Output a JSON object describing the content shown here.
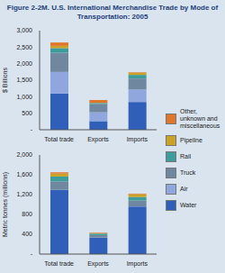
{
  "title": "Figure 2-2M. U.S. International Merchandise Trade by Mode of Transportation: 2005",
  "chart_data": [
    {
      "type": "bar",
      "stacked": true,
      "legend": "right",
      "y_label": "$ Billions",
      "categories": [
        "Total trade",
        "Exports",
        "Imports"
      ],
      "ylim": [
        0,
        3000
      ],
      "yticks": [
        {
          "value": 0,
          "label": "-"
        },
        500,
        {
          "value": 1000,
          "label": "1,000"
        },
        {
          "value": 1500,
          "label": "1,500"
        },
        {
          "value": 2000,
          "label": "2,000"
        },
        {
          "value": 2500,
          "label": "2,500"
        },
        {
          "value": 3000,
          "label": "3,000"
        }
      ],
      "series": [
        {
          "name": "Water",
          "color": "#2f5fb8",
          "values": [
            1100,
            260,
            840
          ]
        },
        {
          "name": "Air",
          "color": "#8fa6df",
          "values": [
            650,
            270,
            380
          ]
        },
        {
          "name": "Truck",
          "color": "#6f879f",
          "values": [
            580,
            250,
            330
          ]
        },
        {
          "name": "Rail",
          "color": "#3f9c9c",
          "values": [
            140,
            30,
            110
          ]
        },
        {
          "name": "Pipeline",
          "color": "#c9a227",
          "values": [
            70,
            5,
            65
          ]
        },
        {
          "name": "Other, unknown and miscellaneous",
          "color": "#e0762a",
          "values": [
            100,
            85,
            15
          ]
        }
      ]
    },
    {
      "type": "bar",
      "stacked": true,
      "y_label": "Metric tonnes (millions)",
      "categories": [
        "Total trade",
        "Exports",
        "Imports"
      ],
      "ylim": [
        0,
        2000
      ],
      "yticks": [
        {
          "value": 0,
          "label": "-"
        },
        400,
        800,
        {
          "value": 1200,
          "label": "1,200"
        },
        {
          "value": 1600,
          "label": "1,600"
        },
        {
          "value": 2000,
          "label": "2,000"
        }
      ],
      "series": [
        {
          "name": "Water",
          "color": "#2f5fb8",
          "values": [
            1290,
            330,
            960
          ]
        },
        {
          "name": "Air",
          "color": "#8fa6df",
          "values": [
            5,
            3,
            2
          ]
        },
        {
          "name": "Truck",
          "color": "#6f879f",
          "values": [
            170,
            50,
            120
          ]
        },
        {
          "name": "Rail",
          "color": "#3f9c9c",
          "values": [
            100,
            30,
            70
          ]
        },
        {
          "name": "Pipeline",
          "color": "#c9a227",
          "values": [
            60,
            5,
            55
          ]
        },
        {
          "name": "Other, unknown and miscellaneous",
          "color": "#e0762a",
          "values": [
            25,
            12,
            13
          ]
        }
      ]
    }
  ]
}
